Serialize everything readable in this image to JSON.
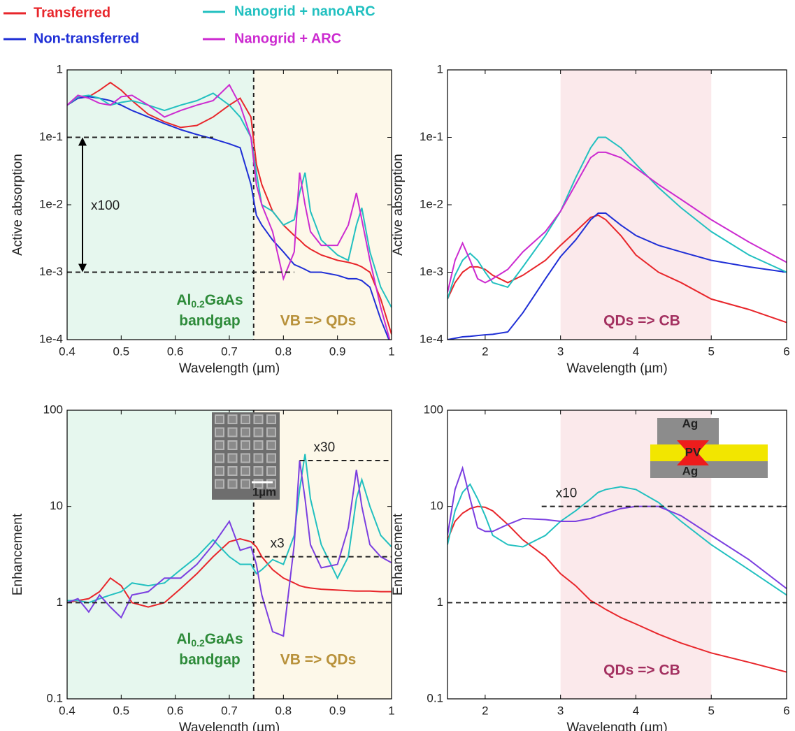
{
  "legend": [
    {
      "name": "Transferred",
      "color": "#e8262b"
    },
    {
      "name": "Non-transferred",
      "color": "#1f2fd6"
    },
    {
      "name": "Nanogrid + nanoARC",
      "color": "#22c0c0"
    },
    {
      "name": "Nanogrid + ARC",
      "color": "#cc2bd0"
    }
  ],
  "chart_data": [
    {
      "type": "line",
      "ylabel": "Active absorption",
      "xlabel": "Wavelength (µm)",
      "log_y": true,
      "xlim": [
        0.4,
        1
      ],
      "ylim": [
        0.0001,
        1
      ],
      "xticks": [
        0.4,
        0.5,
        0.6,
        0.7,
        0.8,
        0.9,
        1
      ],
      "yticks": [
        {
          "value": 0.0001,
          "label": "1e-4"
        },
        {
          "value": 0.001,
          "label": "1e-3"
        },
        {
          "value": 0.01,
          "label": "1e-2"
        },
        {
          "value": 0.1,
          "label": "1e-1"
        },
        1
      ],
      "x": [
        0.4,
        0.42,
        0.44,
        0.46,
        0.48,
        0.5,
        0.52,
        0.55,
        0.58,
        0.61,
        0.64,
        0.67,
        0.7,
        0.72,
        0.74,
        0.75,
        0.76,
        0.78,
        0.8,
        0.82,
        0.83,
        0.84,
        0.85,
        0.87,
        0.9,
        0.92,
        0.935,
        0.945,
        0.96,
        0.98,
        1.0
      ],
      "series": [
        {
          "color": "#e8262b",
          "values": [
            0.3,
            0.38,
            0.4,
            0.5,
            0.65,
            0.5,
            0.35,
            0.22,
            0.17,
            0.14,
            0.15,
            0.2,
            0.3,
            0.38,
            0.2,
            0.04,
            0.02,
            0.008,
            0.005,
            0.0035,
            0.003,
            0.0025,
            0.0022,
            0.0018,
            0.0015,
            0.0014,
            0.0013,
            0.0012,
            0.001,
            0.0004,
            0.00012
          ]
        },
        {
          "color": "#1f2fd6",
          "values": [
            0.3,
            0.38,
            0.4,
            0.38,
            0.35,
            0.3,
            0.25,
            0.2,
            0.16,
            0.13,
            0.11,
            0.095,
            0.08,
            0.07,
            0.02,
            0.007,
            0.005,
            0.003,
            0.002,
            0.0013,
            0.0012,
            0.0011,
            0.001,
            0.001,
            0.0009,
            0.0008,
            0.0008,
            0.00075,
            0.0006,
            0.0002,
            8e-05
          ]
        },
        {
          "color": "#22c0c0",
          "values": [
            0.3,
            0.4,
            0.42,
            0.38,
            0.3,
            0.33,
            0.35,
            0.3,
            0.25,
            0.3,
            0.35,
            0.45,
            0.3,
            0.2,
            0.1,
            0.03,
            0.01,
            0.008,
            0.005,
            0.006,
            0.015,
            0.03,
            0.008,
            0.003,
            0.0018,
            0.0015,
            0.005,
            0.009,
            0.002,
            0.0006,
            0.0003
          ]
        },
        {
          "color": "#cc2bd0",
          "values": [
            0.3,
            0.42,
            0.38,
            0.32,
            0.3,
            0.4,
            0.42,
            0.3,
            0.2,
            0.25,
            0.3,
            0.35,
            0.6,
            0.3,
            0.1,
            0.02,
            0.01,
            0.004,
            0.0008,
            0.002,
            0.03,
            0.01,
            0.004,
            0.0025,
            0.0025,
            0.005,
            0.015,
            0.006,
            0.0015,
            0.0003,
            8e-05
          ]
        }
      ],
      "bands": [
        {
          "x": [
            0.4,
            0.745
          ],
          "color": "#e6f7ee"
        },
        {
          "x": [
            0.745,
            1
          ],
          "color": "#fdf8e9"
        }
      ],
      "vlines": [
        0.745
      ],
      "hlines": [
        {
          "y": 0.1,
          "x": [
            0.4,
            0.67
          ]
        },
        {
          "y": 0.001,
          "x": [
            0.4,
            0.82
          ]
        }
      ],
      "arrow": {
        "y": [
          0.001,
          0.1
        ],
        "label": "x100"
      },
      "bandgap_label": {
        "element": "Al",
        "subscript": "0.2",
        "rest": "GaAs",
        "line2": "bandgap"
      },
      "region_labels": [
        "VB => QDs"
      ]
    },
    {
      "type": "line",
      "ylabel": "Active absorption",
      "xlabel": "Wavelength (µm)",
      "log_y": true,
      "xlim": [
        1.5,
        6
      ],
      "ylim": [
        0.0001,
        1
      ],
      "xticks": [
        2,
        3,
        4,
        5,
        6
      ],
      "yticks": [
        {
          "value": 0.0001,
          "label": "1e-4"
        },
        {
          "value": 0.001,
          "label": "1e-3"
        },
        {
          "value": 0.01,
          "label": "1e-2"
        },
        {
          "value": 0.1,
          "label": "1e-1"
        },
        1
      ],
      "x": [
        1.5,
        1.6,
        1.7,
        1.8,
        1.9,
        2.0,
        2.1,
        2.3,
        2.5,
        2.8,
        3.0,
        3.2,
        3.4,
        3.5,
        3.6,
        3.8,
        4.0,
        4.3,
        4.6,
        5.0,
        5.5,
        6.0
      ],
      "series": [
        {
          "color": "#e8262b",
          "values": [
            0.0004,
            0.0007,
            0.001,
            0.0012,
            0.0012,
            0.0011,
            0.0009,
            0.0007,
            0.0009,
            0.0015,
            0.0025,
            0.004,
            0.0065,
            0.007,
            0.006,
            0.0035,
            0.0018,
            0.001,
            0.0007,
            0.0004,
            0.00028,
            0.00018
          ]
        },
        {
          "color": "#1f2fd6",
          "values": [
            0.0001,
            0.000105,
            0.00011,
            0.000112,
            0.000115,
            0.000118,
            0.00012,
            0.00013,
            0.00025,
            0.0008,
            0.0017,
            0.003,
            0.006,
            0.0075,
            0.0075,
            0.005,
            0.0035,
            0.0025,
            0.002,
            0.0015,
            0.0012,
            0.001
          ]
        },
        {
          "color": "#22c0c0",
          "values": [
            0.0004,
            0.0009,
            0.0015,
            0.0019,
            0.0015,
            0.001,
            0.0007,
            0.0006,
            0.0012,
            0.0035,
            0.008,
            0.025,
            0.07,
            0.1,
            0.1,
            0.07,
            0.04,
            0.018,
            0.009,
            0.004,
            0.0018,
            0.001
          ]
        },
        {
          "color": "#cc2bd0",
          "values": [
            0.0005,
            0.0015,
            0.0027,
            0.0015,
            0.0008,
            0.0007,
            0.0008,
            0.0011,
            0.002,
            0.004,
            0.008,
            0.02,
            0.05,
            0.06,
            0.06,
            0.05,
            0.035,
            0.02,
            0.012,
            0.006,
            0.0028,
            0.0014
          ]
        }
      ],
      "bands": [
        {
          "x": [
            3,
            5
          ],
          "color": "#fbe9eb"
        }
      ],
      "region_labels": [
        "QDs => CB"
      ]
    },
    {
      "type": "line",
      "ylabel": "Enhancement",
      "xlabel": "Wavelength (µm)",
      "log_y": true,
      "xlim": [
        0.4,
        1
      ],
      "ylim": [
        0.1,
        100
      ],
      "xticks": [
        0.4,
        0.5,
        0.6,
        0.7,
        0.8,
        0.9,
        1
      ],
      "yticks": [
        0.1,
        1,
        10,
        100
      ],
      "x": [
        0.4,
        0.42,
        0.44,
        0.46,
        0.48,
        0.5,
        0.52,
        0.55,
        0.58,
        0.61,
        0.64,
        0.67,
        0.7,
        0.72,
        0.74,
        0.75,
        0.76,
        0.78,
        0.8,
        0.82,
        0.83,
        0.84,
        0.85,
        0.87,
        0.9,
        0.92,
        0.935,
        0.945,
        0.96,
        0.98,
        1.0
      ],
      "series": [
        {
          "color": "#e8262b",
          "values": [
            1.0,
            1.05,
            1.1,
            1.3,
            1.8,
            1.5,
            1.0,
            0.9,
            1.0,
            1.4,
            2.0,
            3.0,
            4.3,
            4.6,
            4.3,
            3.8,
            3.0,
            2.2,
            1.8,
            1.6,
            1.5,
            1.45,
            1.42,
            1.38,
            1.35,
            1.33,
            1.32,
            1.32,
            1.32,
            1.3,
            1.3
          ]
        },
        {
          "color": "#22c0c0",
          "values": [
            1.05,
            1.05,
            1.0,
            1.1,
            1.2,
            1.3,
            1.6,
            1.5,
            1.6,
            2.2,
            3.0,
            4.5,
            3.0,
            2.5,
            2.5,
            2.0,
            2.2,
            2.8,
            2.5,
            5,
            15,
            35,
            12,
            4,
            1.8,
            3,
            12,
            19,
            10,
            5,
            3.8
          ]
        },
        {
          "color": "#7b3fe0",
          "values": [
            1.0,
            1.1,
            0.8,
            1.2,
            0.9,
            0.7,
            1.2,
            1.3,
            1.8,
            1.8,
            2.5,
            4,
            7,
            3.5,
            3.8,
            2.5,
            1.2,
            0.5,
            0.45,
            4,
            30,
            12,
            4,
            2.3,
            2.5,
            6,
            24,
            10,
            4,
            3,
            2.6
          ]
        }
      ],
      "bands": [
        {
          "x": [
            0.4,
            0.745
          ],
          "color": "#e6f7ee"
        },
        {
          "x": [
            0.745,
            1
          ],
          "color": "#fdf8e9"
        }
      ],
      "vlines": [
        0.745
      ],
      "hlines": [
        {
          "y": 1,
          "x": [
            0.4,
            1
          ]
        },
        {
          "y": 3,
          "x": [
            0.75,
            1
          ],
          "label": "x3"
        },
        {
          "y": 30,
          "x": [
            0.83,
            1
          ],
          "label": "x30"
        }
      ],
      "bandgap_label": {
        "element": "Al",
        "subscript": "0.2",
        "rest": "GaAs",
        "line2": "bandgap"
      },
      "region_labels": [
        "VB => QDs"
      ],
      "inset_labels": [
        "1µm"
      ]
    },
    {
      "type": "line",
      "ylabel": "Enhancement",
      "xlabel": "Wavelength (µm)",
      "log_y": true,
      "xlim": [
        1.5,
        6
      ],
      "ylim": [
        0.1,
        100
      ],
      "xticks": [
        2,
        3,
        4,
        5,
        6
      ],
      "yticks": [
        0.1,
        1,
        10,
        100
      ],
      "x": [
        1.5,
        1.6,
        1.7,
        1.8,
        1.9,
        2.0,
        2.1,
        2.3,
        2.5,
        2.8,
        3.0,
        3.2,
        3.4,
        3.5,
        3.6,
        3.8,
        4.0,
        4.3,
        4.6,
        5.0,
        5.5,
        6.0
      ],
      "series": [
        {
          "color": "#e8262b",
          "values": [
            4.5,
            7,
            8.5,
            9.5,
            10,
            9.8,
            9,
            6.5,
            4.5,
            3,
            2,
            1.5,
            1.05,
            0.95,
            0.85,
            0.7,
            0.6,
            0.47,
            0.38,
            0.3,
            0.24,
            0.19
          ]
        },
        {
          "color": "#22c0c0",
          "values": [
            4,
            9,
            14,
            17,
            12,
            8,
            5,
            4,
            3.8,
            5,
            7,
            9,
            12,
            14,
            15,
            16,
            15,
            11,
            7,
            4,
            2.2,
            1.2
          ]
        },
        {
          "color": "#7b3fe0",
          "values": [
            5,
            15,
            25,
            12,
            6,
            5.5,
            5.5,
            6.5,
            7.5,
            7.3,
            7,
            7,
            7.5,
            8,
            8.5,
            9.5,
            10,
            10,
            8,
            5,
            2.8,
            1.4
          ]
        }
      ],
      "bands": [
        {
          "x": [
            3,
            5
          ],
          "color": "#fbe9eb"
        }
      ],
      "hlines": [
        {
          "y": 1,
          "x": [
            1.5,
            6
          ]
        },
        {
          "y": 10,
          "x": [
            2.75,
            6
          ],
          "label": "x10"
        }
      ],
      "region_labels": [
        "QDs => CB"
      ],
      "inset_labels": [
        "Ag",
        "PV",
        "Ag"
      ]
    }
  ]
}
